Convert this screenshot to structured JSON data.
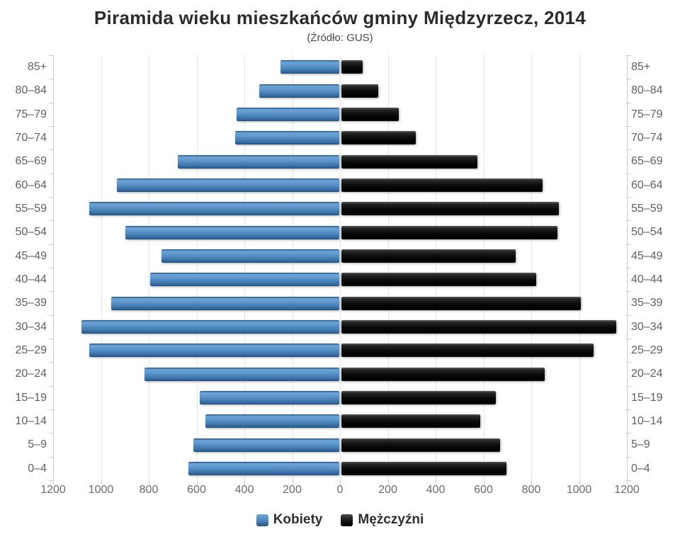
{
  "title": "Piramida wieku mieszkańców gminy Międzyrzecz, 2014",
  "subtitle": "(Źródło: GUS)",
  "chart_data": {
    "type": "bar",
    "variant": "population-pyramid",
    "orientation": "horizontal",
    "title": "Piramida wieku mieszkańców gminy Międzyrzecz, 2014",
    "subtitle": "(Źródło: GUS)",
    "categories": [
      "85+",
      "80–84",
      "75–79",
      "70–74",
      "65–69",
      "60–64",
      "55–59",
      "50–54",
      "45–49",
      "40–44",
      "35–39",
      "30–34",
      "25–29",
      "20–24",
      "15–19",
      "10–14",
      "5–9",
      "0–4"
    ],
    "series": [
      {
        "name": "Kobiety",
        "color": "#4d86bc",
        "values": [
          245,
          335,
          430,
          435,
          675,
          930,
          1045,
          895,
          745,
          790,
          955,
          1080,
          1045,
          815,
          585,
          560,
          610,
          630
        ]
      },
      {
        "name": "Mężczyźni",
        "color": "#111111",
        "values": [
          90,
          155,
          240,
          310,
          570,
          840,
          910,
          905,
          730,
          815,
          1000,
          1150,
          1055,
          850,
          645,
          580,
          665,
          690
        ]
      }
    ],
    "xlabel": "",
    "ylabel": "",
    "axis_max": 1200,
    "tick_step": 200,
    "x_tick_labels": [
      "1200",
      "1000",
      "800",
      "600",
      "400",
      "200",
      "0",
      "200",
      "400",
      "600",
      "800",
      "1000",
      "1200"
    ],
    "grid": true,
    "legend_position": "bottom"
  }
}
